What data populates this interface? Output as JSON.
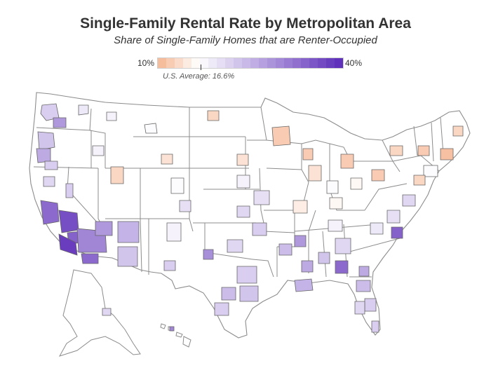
{
  "title": "Single-Family Rental Rate by Metropolitan Area",
  "subtitle": "Share of Single-Family Homes that are Renter-Occupied",
  "legend": {
    "min_label": "10%",
    "max_label": "40%",
    "avg_label": "U.S. Average: 16.6%",
    "avg_value": 16.6,
    "min_value": 10,
    "max_value": 40
  },
  "colors": {
    "low": "#f5b591",
    "mid": "#ffffff",
    "high": "#5b2bb8",
    "boundary": "#8c8c8c",
    "metro_border": "#666666"
  },
  "map_data": {
    "metros": [
      {
        "id": "seattle",
        "rate": 22
      },
      {
        "id": "spokane",
        "rate": 19
      },
      {
        "id": "yakima",
        "rate": 28
      },
      {
        "id": "portland",
        "rate": 23
      },
      {
        "id": "eugene",
        "rate": 26
      },
      {
        "id": "medford",
        "rate": 22
      },
      {
        "id": "boise",
        "rate": 18
      },
      {
        "id": "missoula",
        "rate": 18
      },
      {
        "id": "billings",
        "rate": 17
      },
      {
        "id": "redding",
        "rate": 21
      },
      {
        "id": "reno",
        "rate": 22
      },
      {
        "id": "salt-lake",
        "rate": 13
      },
      {
        "id": "cheyenne",
        "rate": 14
      },
      {
        "id": "denver",
        "rate": 17
      },
      {
        "id": "colorado-springs",
        "rate": 20
      },
      {
        "id": "bay-area",
        "rate": 33
      },
      {
        "id": "fresno",
        "rate": 36
      },
      {
        "id": "bakersfield",
        "rate": 34
      },
      {
        "id": "los-angeles",
        "rate": 38
      },
      {
        "id": "riverside",
        "rate": 30
      },
      {
        "id": "san-diego",
        "rate": 33
      },
      {
        "id": "las-vegas",
        "rate": 28
      },
      {
        "id": "phoenix",
        "rate": 25
      },
      {
        "id": "tucson",
        "rate": 23
      },
      {
        "id": "albuquerque",
        "rate": 18
      },
      {
        "id": "el-paso",
        "rate": 22
      },
      {
        "id": "fargo",
        "rate": 13
      },
      {
        "id": "sioux-falls",
        "rate": 14
      },
      {
        "id": "minneapolis",
        "rate": 12
      },
      {
        "id": "omaha",
        "rate": 18
      },
      {
        "id": "kansas-city",
        "rate": 20
      },
      {
        "id": "wichita",
        "rate": 21
      },
      {
        "id": "tulsa",
        "rate": 22
      },
      {
        "id": "oklahoma-city",
        "rate": 21
      },
      {
        "id": "dallas",
        "rate": 22
      },
      {
        "id": "austin",
        "rate": 24
      },
      {
        "id": "houston",
        "rate": 23
      },
      {
        "id": "san-antonio",
        "rate": 22
      },
      {
        "id": "lubbock",
        "rate": 29
      },
      {
        "id": "little-rock",
        "rate": 24
      },
      {
        "id": "memphis",
        "rate": 28
      },
      {
        "id": "new-orleans",
        "rate": 25
      },
      {
        "id": "jackson",
        "rate": 26
      },
      {
        "id": "birmingham",
        "rate": 23
      },
      {
        "id": "atlanta",
        "rate": 21
      },
      {
        "id": "columbus-ga",
        "rate": 33
      },
      {
        "id": "savannah",
        "rate": 26
      },
      {
        "id": "jacksonville",
        "rate": 24
      },
      {
        "id": "orlando",
        "rate": 22
      },
      {
        "id": "tampa",
        "rate": 21
      },
      {
        "id": "miami",
        "rate": 22
      },
      {
        "id": "charlotte",
        "rate": 19
      },
      {
        "id": "raleigh",
        "rate": 20
      },
      {
        "id": "fayetteville-nc",
        "rate": 34
      },
      {
        "id": "virginia-beach",
        "rate": 21
      },
      {
        "id": "nashville",
        "rate": 18
      },
      {
        "id": "louisville",
        "rate": 16
      },
      {
        "id": "st-louis",
        "rate": 15
      },
      {
        "id": "chicago",
        "rate": 14
      },
      {
        "id": "detroit",
        "rate": 12
      },
      {
        "id": "milwaukee",
        "rate": 12
      },
      {
        "id": "indianapolis",
        "rate": 17
      },
      {
        "id": "columbus-oh",
        "rate": 16
      },
      {
        "id": "pittsburgh",
        "rate": 12
      },
      {
        "id": "buffalo",
        "rate": 13
      },
      {
        "id": "albany",
        "rate": 12
      },
      {
        "id": "new-york",
        "rate": 17
      },
      {
        "id": "philadelphia",
        "rate": 13
      },
      {
        "id": "boston",
        "rate": 11
      },
      {
        "id": "portland-me",
        "rate": 13
      },
      {
        "id": "anchorage",
        "rate": 21
      },
      {
        "id": "honolulu",
        "rate": 30
      }
    ]
  }
}
